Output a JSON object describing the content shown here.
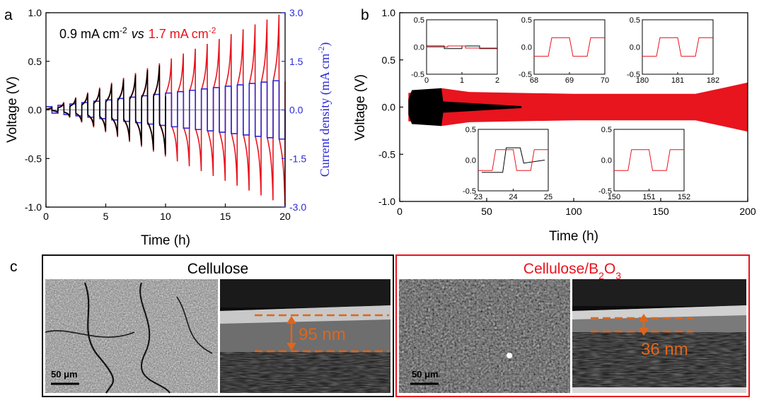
{
  "panel_a": {
    "letter": "a",
    "legend_black": "0.9 mA cm",
    "legend_black_sup": "-2",
    "legend_vs": "vs",
    "legend_red": "1.7 mA cm",
    "legend_red_sup": "-2",
    "colors": {
      "black": "#000000",
      "red": "#e8141e",
      "blue": "#2a2ad8"
    }
  },
  "panel_b": {
    "letter": "b",
    "insets": [
      {
        "name": "inset-0-2",
        "xticks": [
          "0",
          "1",
          "2"
        ],
        "yticks": [
          "0.5",
          "0.0",
          "-0.5"
        ]
      },
      {
        "name": "inset-68-70",
        "xticks": [
          "68",
          "69",
          "70"
        ],
        "yticks": [
          "0.5",
          "0.0",
          "-0.5"
        ]
      },
      {
        "name": "inset-180-182",
        "xticks": [
          "180",
          "181",
          "182"
        ],
        "yticks": [
          "0.5",
          "0.0",
          "-0.5"
        ]
      },
      {
        "name": "inset-23-25",
        "xticks": [
          "23",
          "24",
          "25"
        ],
        "yticks": [
          "0.5",
          "0.0",
          "-0.5"
        ]
      },
      {
        "name": "inset-150-152",
        "xticks": [
          "150",
          "151",
          "152"
        ],
        "yticks": [
          "0.5",
          "0.0",
          "-0.5"
        ]
      }
    ]
  },
  "panel_c": {
    "letter": "c",
    "left_title": "Cellulose",
    "right_title_main": "Cellulose/B",
    "right_title_sub1": "2",
    "right_title_mid": "O",
    "right_title_sub2": "3",
    "left_thickness": "95 nm",
    "right_thickness": "36 nm",
    "scalebar_left": "50 μm",
    "scalebar_right": "50 μm"
  },
  "chart_data": [
    {
      "type": "line",
      "panel": "a",
      "xlabel": "Time (h)",
      "ylabel": "Voltage (V)",
      "y2label": "Current density (mA cm",
      "y2label_sup": "-2",
      "y2label_end": ")",
      "xlim": [
        0,
        20
      ],
      "ylim": [
        -1.0,
        1.0
      ],
      "y2lim": [
        -3.0,
        3.0
      ],
      "xticks": [
        0,
        5,
        10,
        15,
        20
      ],
      "yticks": [
        -1.0,
        -0.5,
        0.0,
        0.5,
        1.0
      ],
      "y2ticks": [
        -3.0,
        -1.5,
        0.0,
        1.5,
        3.0
      ],
      "xtick_labels": [
        "0",
        "5",
        "10",
        "15",
        "20"
      ],
      "ytick_labels": [
        "-1.0",
        "-0.5",
        "0.0",
        "0.5",
        "1.0"
      ],
      "y2tick_labels": [
        "-3.0",
        "-1.5",
        "0.0",
        "1.5",
        "3.0"
      ],
      "series": [
        {
          "name": "0.9 mA cm-2",
          "color": "#000000",
          "cycle_h": 1.0,
          "t_end": 10.4,
          "peak_start": 0.02,
          "peak_end": 0.46
        },
        {
          "name": "1.7 mA cm-2",
          "color": "#e8141e",
          "cycle_h": 1.0,
          "t_end": 20.0,
          "peak_start": 0.03,
          "peak_end": 0.98
        },
        {
          "name": "current density",
          "color": "#2a2ad8",
          "axis": "y2",
          "cycle_h": 1.0,
          "t_end": 20.0,
          "peak_start": 0.1,
          "peak_end": 0.9
        }
      ]
    },
    {
      "type": "line",
      "panel": "b",
      "xlabel": "Time (h)",
      "ylabel": "Voltage (V)",
      "xlim": [
        0,
        200
      ],
      "ylim": [
        -1.0,
        1.0
      ],
      "xticks": [
        0,
        50,
        100,
        150,
        200
      ],
      "yticks": [
        -1.0,
        -0.5,
        0.0,
        0.5,
        1.0
      ],
      "xtick_labels": [
        "0",
        "50",
        "100",
        "150",
        "200"
      ],
      "ytick_labels": [
        "-1.0",
        "-0.5",
        "0.0",
        "0.5",
        "1.0"
      ],
      "series": [
        {
          "name": "cellulose",
          "color": "#000000",
          "envelope": [
            [
              5,
              0.08
            ],
            [
              7,
              0.18
            ],
            [
              24,
              0.2
            ],
            [
              25,
              0.06
            ],
            [
              70,
              0.01
            ]
          ]
        },
        {
          "name": "cellulose/B2O3",
          "color": "#e8141e",
          "envelope": [
            [
              5,
              0.15
            ],
            [
              24,
              0.2
            ],
            [
              40,
              0.16
            ],
            [
              100,
              0.14
            ],
            [
              170,
              0.14
            ],
            [
              200,
              0.26
            ]
          ]
        }
      ]
    }
  ]
}
